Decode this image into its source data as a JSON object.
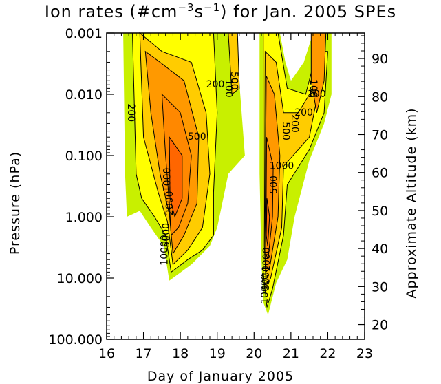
{
  "chart_data": {
    "type": "heatmap",
    "title_main": "Ion rates (#cm",
    "title_exp1": "−3",
    "title_mid": "s",
    "title_exp2": "−1",
    "title_tail": ") for Jan. 2005 SPEs",
    "xlabel": "Day of January 2005",
    "ylabel": "Pressure (hPa)",
    "ylabel_right": "Approximate Altitude (km)",
    "xlim": [
      16,
      23
    ],
    "ylim_pressure": [
      100,
      0.001
    ],
    "y_scale": "log",
    "x_ticks": [
      "16",
      "17",
      "18",
      "19",
      "20",
      "21",
      "22",
      "23"
    ],
    "y_ticks": [
      "0.001",
      "0.010",
      "0.100",
      "1.000",
      "10.000",
      "100.000"
    ],
    "y_right_ticks": [
      "20",
      "30",
      "40",
      "50",
      "60",
      "70",
      "80",
      "90"
    ],
    "contour_levels": [
      100,
      200,
      500,
      1000,
      2000,
      5000,
      10000
    ],
    "level_colors": [
      "#c8f000",
      "#ffff00",
      "#ffcc00",
      "#ff9900",
      "#ff8800",
      "#ff6600",
      "#ff3300"
    ],
    "contour_labels": [
      "200",
      "500",
      "1000",
      "2000",
      "5000",
      "10000",
      "100",
      "200",
      "500",
      "1000",
      "100",
      "200",
      "500",
      "100",
      "200",
      "500",
      "1000",
      "5000",
      "10000"
    ],
    "events": [
      {
        "name": "",
        "start_day": 16.4,
        "end_day": 19.7,
        "peak_day": 17.8,
        "peak_pressure": 0.5,
        "bottom_pressure": 10
      },
      {
        "name": "",
        "start_day": 20.2,
        "end_day": 22.1,
        "peak_day": 20.35,
        "peak_pressure": 5,
        "bottom_pressure": 50
      }
    ]
  }
}
